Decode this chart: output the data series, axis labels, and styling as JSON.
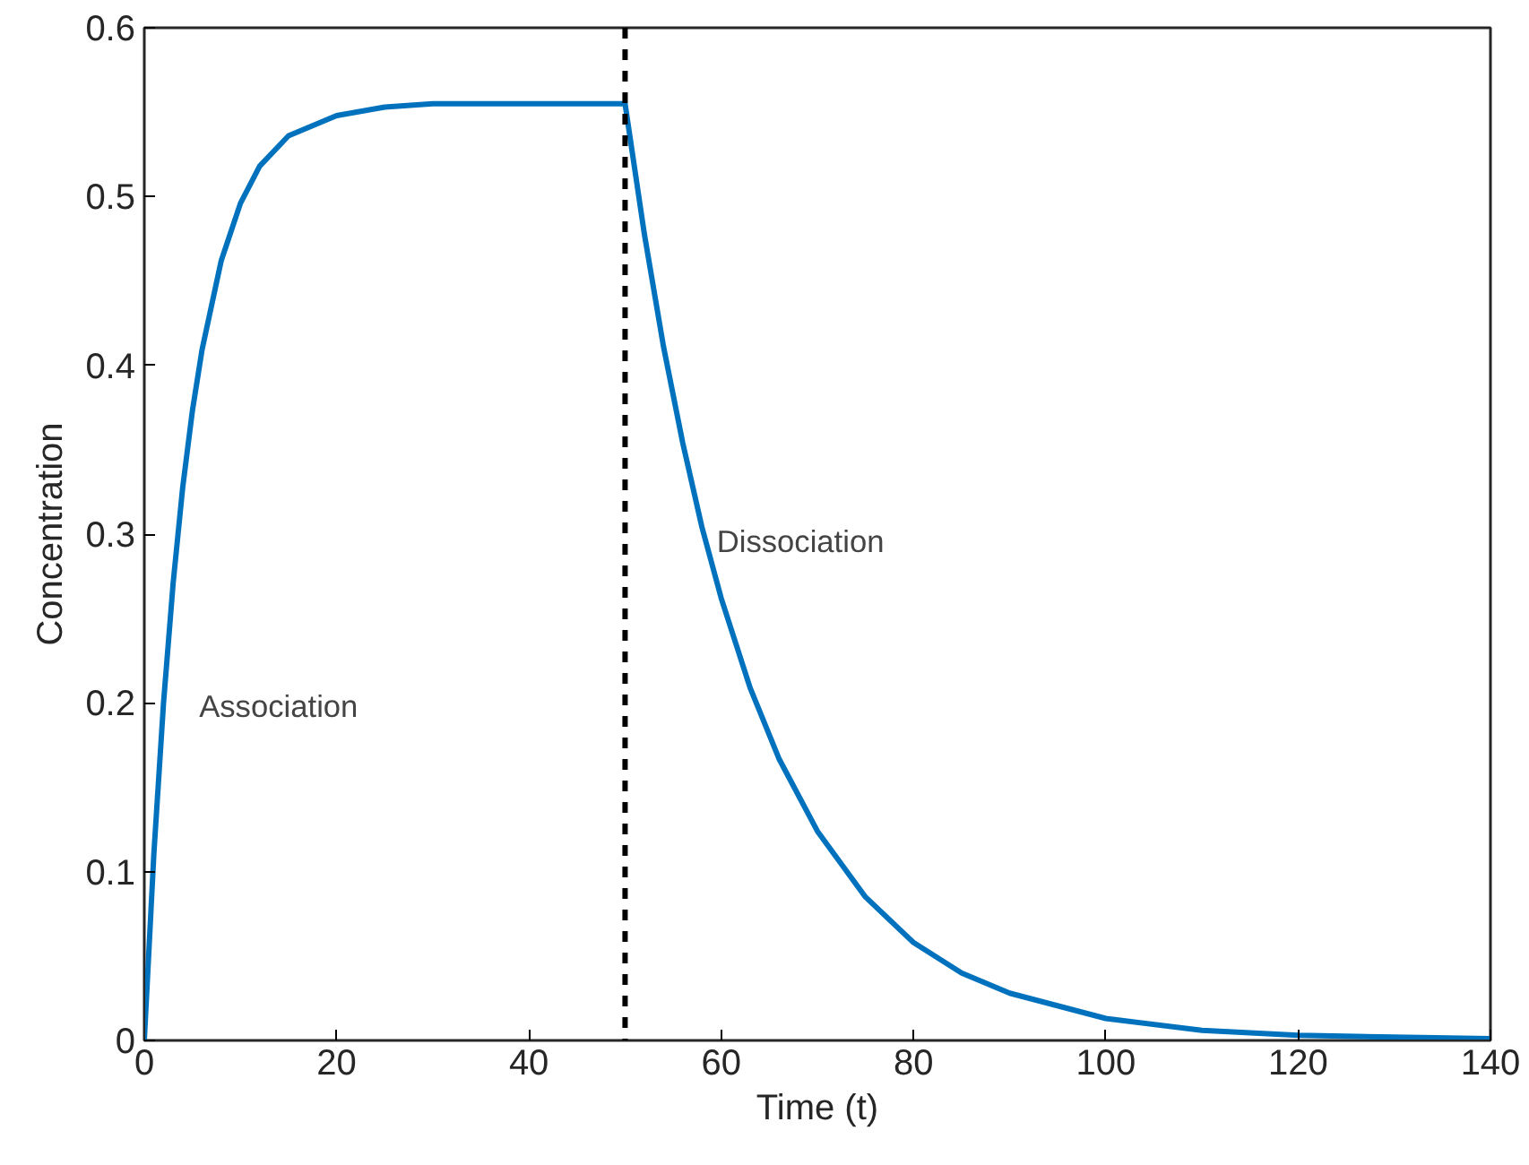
{
  "chart_data": {
    "type": "line",
    "xlabel": "Time (t)",
    "ylabel": "Concentration",
    "x": [
      0,
      1,
      2,
      3,
      4,
      5,
      6,
      8,
      10,
      12,
      15,
      20,
      25,
      30,
      40,
      50,
      52,
      54,
      56,
      58,
      60,
      63,
      66,
      70,
      75,
      80,
      85,
      90,
      100,
      110,
      120,
      140
    ],
    "series": [
      {
        "color": "#0072bd",
        "values": [
          0,
          0.111,
          0.2,
          0.271,
          0.328,
          0.373,
          0.409,
          0.462,
          0.496,
          0.518,
          0.536,
          0.548,
          0.553,
          0.555,
          0.555,
          0.555,
          0.478,
          0.411,
          0.354,
          0.304,
          0.262,
          0.209,
          0.167,
          0.124,
          0.085,
          0.058,
          0.04,
          0.028,
          0.013,
          0.006,
          0.003,
          0.001
        ]
      }
    ],
    "xlim": [
      0,
      140
    ],
    "ylim": [
      0,
      0.6
    ],
    "xticks": [
      0,
      20,
      40,
      60,
      80,
      100,
      120,
      140
    ],
    "yticks": [
      0,
      0.1,
      0.2,
      0.3,
      0.4,
      0.5,
      0.6
    ],
    "ref_lines": [
      {
        "axis": "x",
        "value": 50,
        "color": "#000000",
        "line_style": "dashed"
      }
    ],
    "annotations": [
      "Association",
      "Dissociation"
    ],
    "grid": false,
    "marker": "none",
    "line_style": "solid"
  }
}
